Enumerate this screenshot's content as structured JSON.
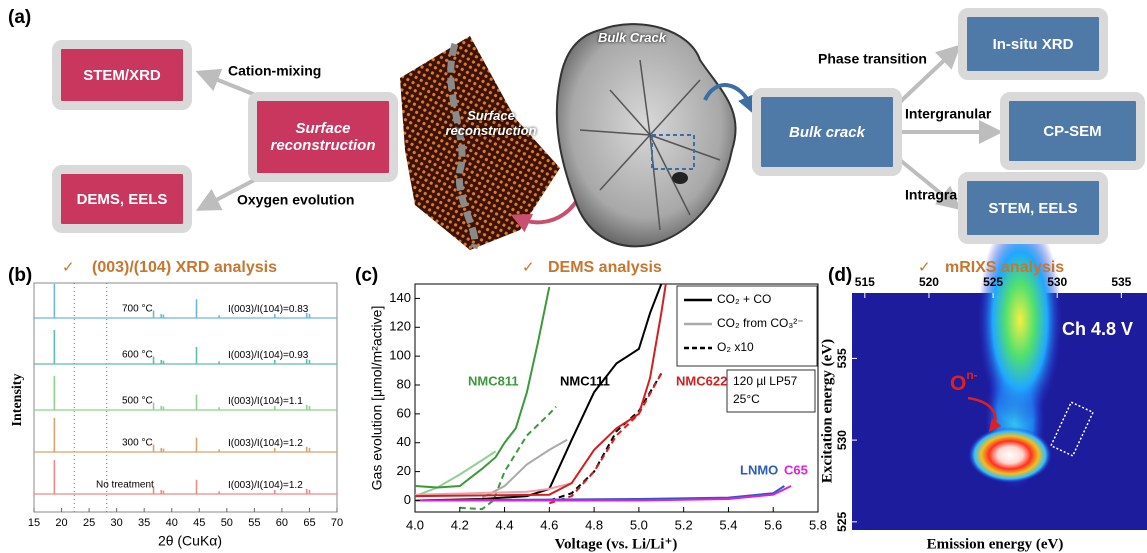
{
  "panel_a": {
    "label": "(a)",
    "nodes": [
      {
        "label": "STEM/XRD"
      },
      {
        "label": "Surface reconstruction"
      },
      {
        "label": "DEMS, EELS"
      },
      {
        "label": "Bulk crack"
      },
      {
        "label": "In-situ XRD"
      },
      {
        "label": "CP-SEM"
      },
      {
        "label": "STEM, EELS"
      }
    ],
    "edge_labels": [
      "Cation-mixing",
      "Oxygen evolution",
      "Phase transition",
      "Intergranular",
      "Intragranular"
    ],
    "image_labels": [
      "Surface reconstruction",
      "Bulk Crack"
    ]
  },
  "chart_data": [
    {
      "type": "stick",
      "panel_label": "(b)",
      "check": "✓",
      "title": "(003)/(104) XRD analysis",
      "xlabel": "2θ (CuKα)",
      "ylabel": "Intensity",
      "xlim": [
        15,
        70
      ],
      "xticks": [
        15,
        20,
        25,
        30,
        35,
        40,
        45,
        50,
        55,
        60,
        65,
        70
      ],
      "reference_lines": [
        22.3,
        28.2
      ],
      "peaks": [
        18.7,
        36.7,
        38.1,
        38.5,
        44.5,
        48.6,
        58.7,
        64.5,
        65.0
      ],
      "ratio_label": "I(003)/I(104)=",
      "series": [
        {
          "name": "700 °C",
          "color": "#6db6da",
          "ratio": 0.83,
          "values": [
            1.0,
            0.22,
            0.12,
            0.1,
            0.55,
            0.08,
            0.12,
            0.15,
            0.12
          ]
        },
        {
          "name": "600 °C",
          "color": "#5fbcb0",
          "ratio": 0.93,
          "values": [
            1.0,
            0.22,
            0.12,
            0.1,
            0.5,
            0.08,
            0.12,
            0.15,
            0.12
          ]
        },
        {
          "name": "500 °C",
          "color": "#8fd08f",
          "ratio": 1.1,
          "values": [
            1.0,
            0.22,
            0.12,
            0.1,
            0.45,
            0.08,
            0.12,
            0.15,
            0.12
          ]
        },
        {
          "name": "300 °C",
          "color": "#d8a36c",
          "ratio": 1.2,
          "values": [
            1.0,
            0.22,
            0.12,
            0.1,
            0.42,
            0.08,
            0.12,
            0.15,
            0.12
          ]
        },
        {
          "name": "No treatment",
          "color": "#ea8a8a",
          "ratio": 1.2,
          "values": [
            1.0,
            0.22,
            0.12,
            0.1,
            0.42,
            0.08,
            0.12,
            0.15,
            0.12
          ]
        }
      ]
    },
    {
      "type": "line",
      "panel_label": "(c)",
      "check": "✓",
      "title": "DEMS analysis",
      "xlabel": "Voltage (vs. Li/Li⁺)",
      "ylabel": "Gas evolution [μmol/m²active]",
      "xlim": [
        4.0,
        5.8
      ],
      "xticks": [
        {
          "value": 4.0,
          "label": "4.0"
        },
        4.2,
        4.4,
        4.6,
        4.8,
        {
          "value": 5.0,
          "label": "5.0"
        },
        5.2,
        5.4,
        5.6,
        5.8
      ],
      "ylim": [
        -8,
        150
      ],
      "yticks": [
        0,
        20,
        40,
        60,
        80,
        100,
        120,
        140
      ],
      "legend": [
        {
          "label": "CO₂ + CO",
          "color": "#000000",
          "style": "solid"
        },
        {
          "label": "CO₂ from CO₃²⁻",
          "color": "#aaaaaa",
          "style": "solid"
        },
        {
          "label": "O₂ x10",
          "color": "#000000",
          "style": "dashed"
        }
      ],
      "conditions": [
        "120 µl LP57",
        "25°C"
      ],
      "annotations": [
        {
          "text": "NMC811",
          "color": "#3a9a3a"
        },
        {
          "text": "NMC111",
          "color": "#000000"
        },
        {
          "text": "NMC622",
          "color": "#d02020"
        },
        {
          "text": "LNMO",
          "color": "#2a5cc0"
        },
        {
          "text": "C65",
          "color": "#e020e0"
        }
      ],
      "series": [
        {
          "color": "#90d090",
          "style": "solid",
          "x": [
            4.0,
            4.1,
            4.2,
            4.3,
            4.36
          ],
          "values": [
            3,
            9,
            18,
            28,
            34
          ]
        },
        {
          "color": "#3a9a3a",
          "style": "solid",
          "x": [
            4.0,
            4.1,
            4.2,
            4.3,
            4.36,
            4.4,
            4.45,
            4.5,
            4.55,
            4.6
          ],
          "values": [
            10,
            9,
            10,
            22,
            30,
            40,
            50,
            75,
            110,
            148
          ]
        },
        {
          "color": "#3a9a3a",
          "style": "dashed",
          "x": [
            4.2,
            4.3,
            4.35,
            4.4,
            4.5,
            4.6,
            4.63
          ],
          "values": [
            -5,
            -6,
            0,
            20,
            45,
            60,
            65
          ]
        },
        {
          "color": "#aaaaaa",
          "style": "solid",
          "x": [
            4.3,
            4.4,
            4.5,
            4.6,
            4.68
          ],
          "values": [
            2,
            10,
            25,
            35,
            42
          ]
        },
        {
          "color": "#000000",
          "style": "solid",
          "x": [
            4.0,
            4.3,
            4.5,
            4.6,
            4.7,
            4.8,
            4.9,
            5.0,
            5.05,
            5.1
          ],
          "values": [
            0,
            1,
            3,
            8,
            42,
            75,
            95,
            105,
            130,
            150
          ]
        },
        {
          "color": "#000000",
          "style": "dashed",
          "x": [
            4.6,
            4.7,
            4.8,
            4.9,
            5.0,
            5.1
          ],
          "values": [
            0,
            5,
            20,
            48,
            62,
            88
          ]
        },
        {
          "color": "#f0a0a8",
          "style": "solid",
          "x": [
            4.0,
            4.5,
            4.6,
            4.7
          ],
          "values": [
            4,
            6,
            8,
            12
          ]
        },
        {
          "color": "#d02020",
          "style": "solid",
          "x": [
            4.0,
            4.6,
            4.7,
            4.8,
            4.9,
            5.0,
            5.05,
            5.1,
            5.12
          ],
          "values": [
            3,
            4,
            12,
            35,
            50,
            60,
            85,
            130,
            150
          ]
        },
        {
          "color": "#d02020",
          "style": "dashed",
          "x": [
            4.6,
            4.7,
            4.8,
            4.9,
            5.0,
            5.1
          ],
          "values": [
            -2,
            3,
            20,
            45,
            60,
            88
          ]
        },
        {
          "color": "#2a5cc0",
          "style": "solid",
          "x": [
            4.0,
            5.0,
            5.4,
            5.6,
            5.65
          ],
          "values": [
            0,
            1,
            2,
            5,
            10
          ]
        },
        {
          "color": "#e020e0",
          "style": "solid",
          "x": [
            4.0,
            5.0,
            5.4,
            5.6,
            5.68
          ],
          "values": [
            0,
            0,
            1,
            4,
            10
          ]
        }
      ]
    },
    {
      "type": "heatmap",
      "panel_label": "(d)",
      "check": "✓",
      "title": "mRIXS analysis",
      "xlabel": "Emission energy (eV)",
      "ylabel": "Excitation energy (eV)",
      "xlim": [
        514,
        537
      ],
      "xticks": [
        515,
        520,
        525,
        530,
        535
      ],
      "ylim": [
        524.5,
        539
      ],
      "yticks": [
        525,
        530,
        535
      ],
      "state_label": "Ch 4.8 V",
      "species": {
        "base": "O",
        "superscript": "n-"
      }
    }
  ]
}
